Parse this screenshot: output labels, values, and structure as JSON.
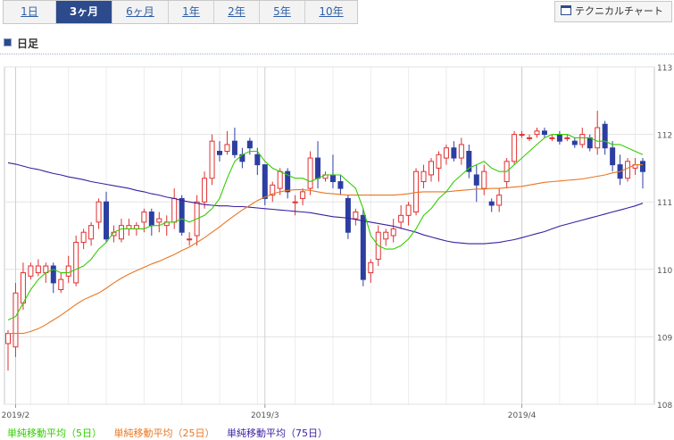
{
  "tabs": [
    {
      "label": "1日",
      "active": false
    },
    {
      "label": "3ヶ月",
      "active": true
    },
    {
      "label": "6ヶ月",
      "active": false
    },
    {
      "label": "1年",
      "active": false
    },
    {
      "label": "2年",
      "active": false
    },
    {
      "label": "5年",
      "active": false
    },
    {
      "label": "10年",
      "active": false
    }
  ],
  "tech_chart_label": "テクニカルチャート",
  "section_title": "日足",
  "legend": [
    {
      "label": "単純移動平均（5日）",
      "color": "#33cc00"
    },
    {
      "label": "単純移動平均（25日）",
      "color": "#e87722"
    },
    {
      "label": "単純移動平均（75日）",
      "color": "#3b1fa0"
    }
  ],
  "chart_data": {
    "type": "candlestick",
    "x_labels": [
      "2019/2",
      "2019/3",
      "2019/4"
    ],
    "y_ticks": [
      108,
      109,
      110,
      111,
      112,
      113
    ],
    "ylim": [
      108,
      113
    ],
    "up_color": "#e03030",
    "down_color": "#2c3fa0",
    "candles": [
      [
        108.9,
        109.05,
        108.5,
        109.1
      ],
      [
        108.85,
        109.65,
        108.7,
        109.8
      ],
      [
        109.5,
        109.95,
        109.4,
        110.1
      ],
      [
        109.9,
        110.05,
        109.85,
        110.1
      ],
      [
        109.95,
        110.05,
        109.9,
        110.15
      ],
      [
        109.95,
        110.05,
        109.8,
        110.1
      ],
      [
        110.05,
        109.8,
        109.65,
        110.1
      ],
      [
        109.7,
        109.85,
        109.65,
        109.95
      ],
      [
        109.9,
        110.05,
        109.8,
        110.2
      ],
      [
        109.8,
        110.4,
        109.75,
        110.5
      ],
      [
        110.4,
        110.55,
        110.3,
        110.6
      ],
      [
        110.45,
        110.65,
        110.35,
        110.7
      ],
      [
        110.7,
        111.0,
        110.6,
        111.05
      ],
      [
        111.0,
        110.45,
        110.4,
        111.15
      ],
      [
        110.5,
        110.55,
        110.4,
        110.65
      ],
      [
        110.45,
        110.65,
        110.4,
        110.75
      ],
      [
        110.6,
        110.65,
        110.5,
        110.75
      ],
      [
        110.6,
        110.65,
        110.5,
        110.7
      ],
      [
        110.7,
        110.85,
        110.55,
        110.9
      ],
      [
        110.85,
        110.65,
        110.5,
        110.9
      ],
      [
        110.7,
        110.75,
        110.55,
        110.85
      ],
      [
        110.65,
        110.7,
        110.5,
        110.8
      ],
      [
        110.7,
        111.05,
        110.6,
        111.2
      ],
      [
        111.05,
        110.55,
        110.5,
        111.1
      ],
      [
        110.45,
        110.45,
        110.35,
        110.55
      ],
      [
        110.5,
        111.0,
        110.35,
        111.1
      ],
      [
        111.0,
        111.35,
        110.9,
        111.45
      ],
      [
        111.35,
        111.9,
        111.25,
        112.0
      ],
      [
        111.75,
        111.7,
        111.6,
        111.9
      ],
      [
        111.75,
        111.85,
        111.7,
        112.05
      ],
      [
        111.9,
        111.7,
        111.65,
        112.1
      ],
      [
        111.7,
        111.6,
        111.5,
        111.8
      ],
      [
        111.9,
        111.8,
        111.7,
        111.95
      ],
      [
        111.7,
        111.55,
        111.4,
        111.8
      ],
      [
        111.55,
        111.05,
        110.95,
        111.55
      ],
      [
        111.1,
        111.25,
        111.0,
        111.3
      ],
      [
        111.2,
        111.45,
        111.1,
        111.5
      ],
      [
        111.45,
        111.15,
        111.05,
        111.5
      ],
      [
        111.0,
        111.0,
        110.8,
        111.1
      ],
      [
        111.05,
        111.15,
        110.95,
        111.2
      ],
      [
        111.2,
        111.65,
        111.1,
        111.75
      ],
      [
        111.65,
        111.35,
        111.2,
        111.9
      ],
      [
        111.35,
        111.4,
        111.3,
        111.45
      ],
      [
        111.4,
        111.3,
        111.2,
        111.7
      ],
      [
        111.3,
        111.2,
        111.1,
        111.4
      ],
      [
        111.05,
        110.55,
        110.45,
        111.1
      ],
      [
        110.75,
        110.85,
        110.65,
        110.9
      ],
      [
        110.8,
        109.85,
        109.75,
        110.9
      ],
      [
        109.95,
        110.1,
        109.8,
        110.15
      ],
      [
        110.15,
        110.55,
        110.05,
        110.65
      ],
      [
        110.45,
        110.55,
        110.35,
        110.6
      ],
      [
        110.5,
        110.6,
        110.4,
        110.75
      ],
      [
        110.7,
        110.8,
        110.6,
        110.95
      ],
      [
        110.8,
        110.95,
        110.65,
        111.0
      ],
      [
        110.85,
        111.45,
        110.8,
        111.5
      ],
      [
        111.3,
        111.45,
        111.2,
        111.55
      ],
      [
        111.4,
        111.6,
        111.3,
        111.65
      ],
      [
        111.5,
        111.7,
        111.3,
        111.75
      ],
      [
        111.65,
        111.8,
        111.55,
        111.85
      ],
      [
        111.8,
        111.65,
        111.6,
        111.9
      ],
      [
        111.65,
        111.85,
        111.55,
        111.95
      ],
      [
        111.75,
        111.45,
        111.35,
        111.85
      ],
      [
        111.4,
        111.25,
        111.0,
        111.55
      ],
      [
        111.2,
        111.45,
        111.1,
        111.55
      ],
      [
        111.0,
        110.95,
        110.85,
        111.05
      ],
      [
        110.95,
        111.1,
        110.85,
        111.2
      ],
      [
        111.3,
        111.6,
        111.2,
        111.65
      ],
      [
        111.6,
        112.0,
        111.55,
        112.05
      ],
      [
        112.0,
        112.0,
        111.95,
        112.05
      ],
      [
        111.95,
        111.95,
        111.9,
        112.0
      ],
      [
        112.0,
        112.05,
        111.95,
        112.1
      ],
      [
        112.05,
        112.0,
        111.95,
        112.1
      ],
      [
        111.95,
        111.95,
        111.9,
        112.0
      ],
      [
        112.0,
        111.9,
        111.85,
        112.05
      ],
      [
        111.95,
        111.95,
        111.9,
        112.0
      ],
      [
        111.9,
        111.85,
        111.8,
        111.95
      ],
      [
        111.85,
        112.0,
        111.8,
        112.1
      ],
      [
        111.95,
        111.8,
        111.75,
        112.0
      ],
      [
        111.8,
        112.1,
        111.7,
        112.35
      ],
      [
        112.15,
        111.8,
        111.7,
        112.2
      ],
      [
        111.8,
        111.55,
        111.45,
        111.9
      ],
      [
        111.55,
        111.35,
        111.25,
        111.7
      ],
      [
        111.35,
        111.6,
        111.3,
        111.65
      ],
      [
        111.5,
        111.55,
        111.4,
        111.65
      ],
      [
        111.6,
        111.45,
        111.2,
        111.65
      ]
    ],
    "ma5": [
      109.25,
      109.3,
      109.5,
      109.7,
      109.85,
      109.95,
      110.0,
      109.95,
      109.95,
      110.0,
      110.05,
      110.15,
      110.3,
      110.4,
      110.55,
      110.6,
      110.6,
      110.6,
      110.6,
      110.65,
      110.65,
      110.7,
      110.7,
      110.75,
      110.7,
      110.75,
      110.8,
      110.9,
      111.05,
      111.35,
      111.6,
      111.7,
      111.75,
      111.75,
      111.6,
      111.5,
      111.45,
      111.4,
      111.35,
      111.35,
      111.3,
      111.35,
      111.4,
      111.4,
      111.4,
      111.3,
      111.2,
      110.9,
      110.5,
      110.35,
      110.3,
      110.3,
      110.35,
      110.45,
      110.6,
      110.8,
      110.9,
      111.05,
      111.15,
      111.3,
      111.4,
      111.5,
      111.55,
      111.6,
      111.5,
      111.45,
      111.45,
      111.55,
      111.65,
      111.75,
      111.85,
      111.95,
      112.0,
      112.0,
      112.0,
      111.95,
      111.95,
      111.95,
      111.9,
      111.9,
      111.85,
      111.85,
      111.8,
      111.75,
      111.7
    ],
    "ma25": [
      109.05,
      109.05,
      109.05,
      109.08,
      109.12,
      109.18,
      109.25,
      109.32,
      109.4,
      109.48,
      109.55,
      109.6,
      109.65,
      109.72,
      109.8,
      109.87,
      109.93,
      109.98,
      110.03,
      110.08,
      110.12,
      110.17,
      110.22,
      110.28,
      110.33,
      110.4,
      110.47,
      110.55,
      110.63,
      110.72,
      110.8,
      110.88,
      110.95,
      111.02,
      111.07,
      111.12,
      111.15,
      111.17,
      111.18,
      111.18,
      111.17,
      111.15,
      111.13,
      111.12,
      111.11,
      111.1,
      111.1,
      111.1,
      111.1,
      111.1,
      111.1,
      111.1,
      111.11,
      111.12,
      111.14,
      111.15,
      111.15,
      111.15,
      111.15,
      111.16,
      111.17,
      111.18,
      111.19,
      111.19,
      111.2,
      111.2,
      111.21,
      111.22,
      111.23,
      111.25,
      111.27,
      111.29,
      111.3,
      111.31,
      111.32,
      111.33,
      111.34,
      111.36,
      111.38,
      111.4,
      111.43,
      111.45,
      111.5,
      111.55,
      111.55
    ],
    "ma75": [
      111.58,
      111.56,
      111.53,
      111.5,
      111.48,
      111.45,
      111.42,
      111.4,
      111.37,
      111.35,
      111.33,
      111.3,
      111.28,
      111.26,
      111.24,
      111.22,
      111.2,
      111.17,
      111.15,
      111.12,
      111.1,
      111.07,
      111.05,
      111.02,
      111.0,
      110.98,
      110.96,
      110.95,
      110.94,
      110.94,
      110.93,
      110.93,
      110.92,
      110.91,
      110.9,
      110.89,
      110.88,
      110.87,
      110.86,
      110.85,
      110.84,
      110.82,
      110.8,
      110.78,
      110.77,
      110.76,
      110.74,
      110.72,
      110.7,
      110.68,
      110.66,
      110.64,
      110.61,
      110.58,
      110.55,
      110.51,
      110.48,
      110.45,
      110.42,
      110.4,
      110.39,
      110.38,
      110.38,
      110.38,
      110.39,
      110.4,
      110.42,
      110.44,
      110.47,
      110.5,
      110.53,
      110.56,
      110.6,
      110.64,
      110.67,
      110.7,
      110.73,
      110.76,
      110.79,
      110.82,
      110.85,
      110.88,
      110.91,
      110.94,
      110.98
    ]
  }
}
